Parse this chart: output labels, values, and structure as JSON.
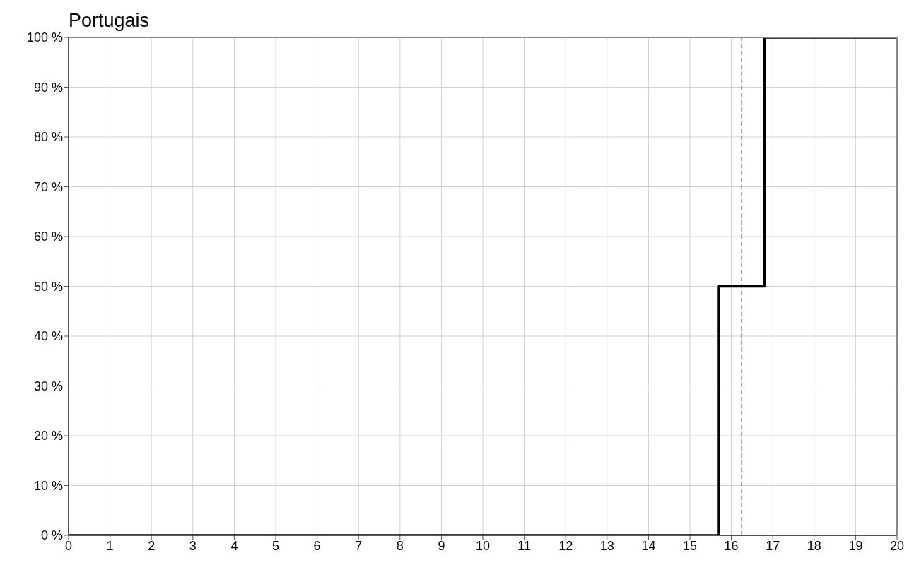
{
  "chart_data": {
    "type": "step",
    "title": "Portugais",
    "x": [
      0,
      15.7,
      16.8,
      20
    ],
    "series": [
      {
        "color": "#000000",
        "values": [
          0,
          50,
          100,
          100
        ]
      }
    ],
    "xlim": [
      0,
      20
    ],
    "xticks": [
      0,
      1,
      2,
      3,
      4,
      5,
      6,
      7,
      8,
      9,
      10,
      11,
      12,
      13,
      14,
      15,
      16,
      17,
      18,
      19,
      20
    ],
    "ylim": [
      0,
      100
    ],
    "yticks": [
      {
        "value": 0,
        "label": "0 %"
      },
      {
        "value": 10,
        "label": "10 %"
      },
      {
        "value": 20,
        "label": "20 %"
      },
      {
        "value": 30,
        "label": "30 %"
      },
      {
        "value": 40,
        "label": "40 %"
      },
      {
        "value": 50,
        "label": "50 %"
      },
      {
        "value": 60,
        "label": "60 %"
      },
      {
        "value": 70,
        "label": "70 %"
      },
      {
        "value": 80,
        "label": "80 %"
      },
      {
        "value": 90,
        "label": "90 %"
      },
      {
        "value": 100,
        "label": "100 %"
      }
    ],
    "ref_lines": [
      {
        "axis": "x",
        "value": 16.25,
        "color": "#4040ff",
        "line_style": "dashed"
      }
    ],
    "grid": true,
    "legend": false,
    "marker": "none",
    "line_style": "solid"
  }
}
